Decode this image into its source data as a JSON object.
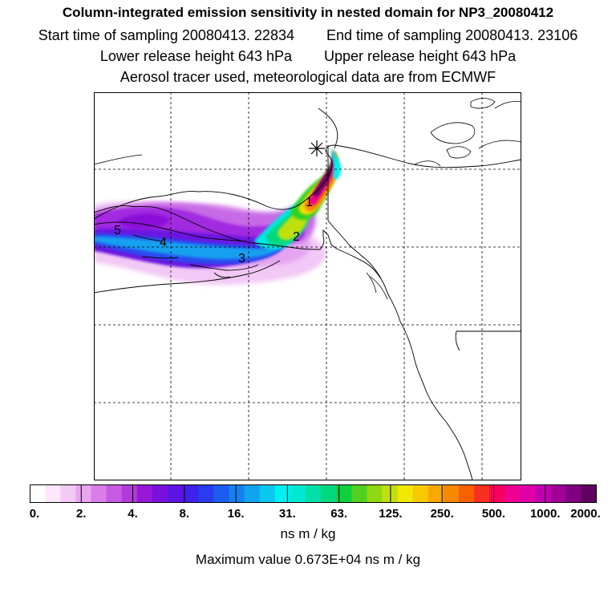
{
  "title": {
    "line1": "Column-integrated emission sensitivity in nested domain for NP3_20080412",
    "start_label": "Start time of sampling 20080413. 22834",
    "end_label": "End time of sampling 20080413. 23106",
    "lower_label": "Lower release height  643 hPa",
    "upper_label": "Upper release height  643 hPa",
    "line4": "Aerosol tracer used, meteorological data are from ECMWF"
  },
  "map": {
    "markers": [
      "1",
      "2",
      "3",
      "4",
      "5"
    ],
    "release_symbol": "asterisk-icon"
  },
  "colorbar": {
    "tick_labels": [
      "0.",
      "2.",
      "4.",
      "8.",
      "16.",
      "31.",
      "63.",
      "125.",
      "250.",
      "500.",
      "1000.",
      "2000."
    ],
    "colors": [
      "#ffffff",
      "#fbe8fb",
      "#f3c9f5",
      "#e9a6f0",
      "#d97ee9",
      "#c75ae2",
      "#b23adb",
      "#9818d8",
      "#7a10dc",
      "#5c14e4",
      "#4020ec",
      "#2a3cf0",
      "#1c5cf0",
      "#1680f0",
      "#10a4f0",
      "#0cc8f0",
      "#00f0f0",
      "#00e8d0",
      "#00e0a8",
      "#00d880",
      "#10d040",
      "#50d020",
      "#90d810",
      "#c0e010",
      "#f0e800",
      "#f8c800",
      "#f8a800",
      "#f88800",
      "#f86000",
      "#f83020",
      "#f80060",
      "#f00090",
      "#e000a8",
      "#c000b0",
      "#a00098",
      "#800080",
      "#600060"
    ],
    "unit": "ns m / kg"
  },
  "max_value": "Maximum value  0.673E+04 ns m / kg"
}
